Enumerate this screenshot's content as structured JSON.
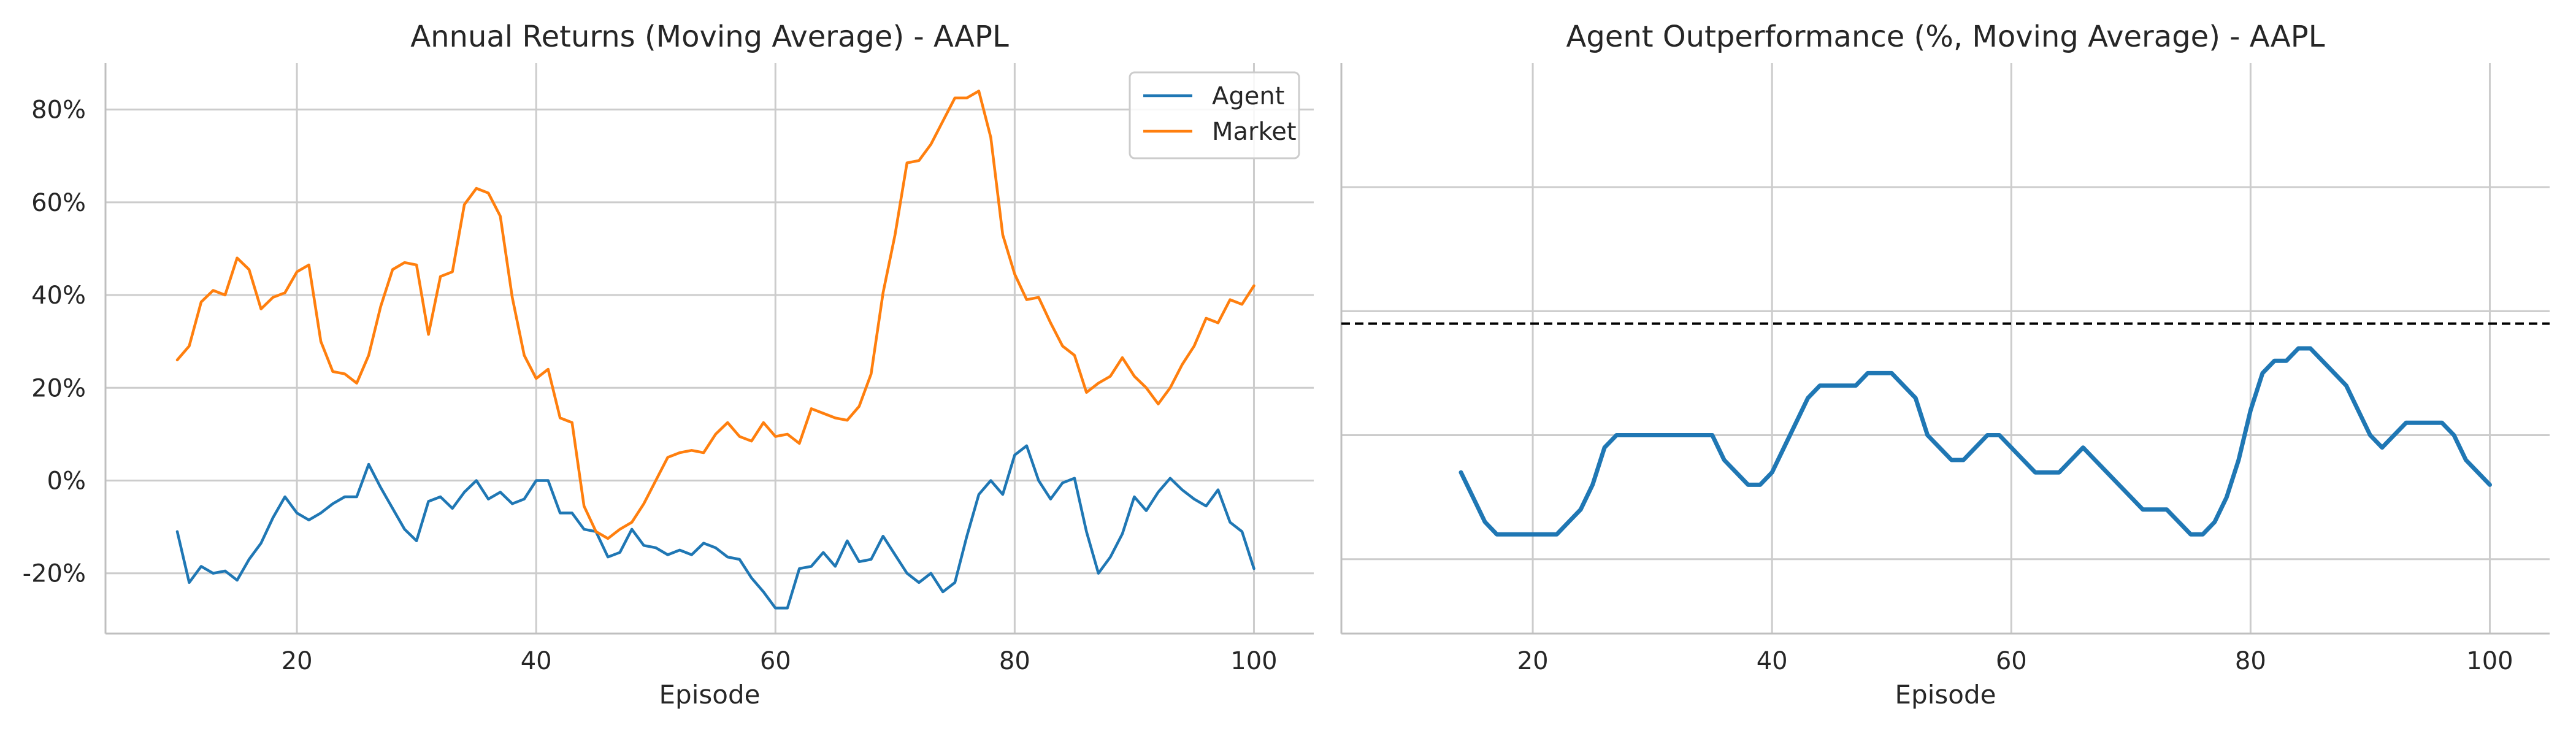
{
  "chart_data": [
    {
      "type": "line",
      "title": "Annual Returns (Moving Average) - AAPL",
      "xlabel": "Episode",
      "ylabel": "",
      "xlim": [
        4,
        105
      ],
      "ylim": [
        -33,
        90
      ],
      "x_ticks": [
        20,
        40,
        60,
        80,
        100
      ],
      "y_ticks": [
        -20,
        0,
        20,
        40,
        60,
        80
      ],
      "y_tick_labels": [
        "-20%",
        "0%",
        "20%",
        "40%",
        "60%",
        "80%"
      ],
      "grid": true,
      "legend": "top-right",
      "series": [
        {
          "name": "Agent",
          "color": "#1f77b4",
          "x": [
            10,
            11,
            12,
            13,
            14,
            15,
            16,
            17,
            18,
            19,
            20,
            21,
            22,
            23,
            24,
            25,
            26,
            27,
            28,
            29,
            30,
            31,
            32,
            33,
            34,
            35,
            36,
            37,
            38,
            39,
            40,
            41,
            42,
            43,
            44,
            45,
            46,
            47,
            48,
            49,
            50,
            51,
            52,
            53,
            54,
            55,
            56,
            57,
            58,
            59,
            60,
            61,
            62,
            63,
            64,
            65,
            66,
            67,
            68,
            69,
            70,
            71,
            72,
            73,
            74,
            75,
            76,
            77,
            78,
            79,
            80,
            81,
            82,
            83,
            84,
            85,
            86,
            87,
            88,
            89,
            90,
            91,
            92,
            93,
            94,
            95,
            96,
            97,
            98,
            99,
            100
          ],
          "y": [
            -11,
            -22,
            -18.5,
            -20,
            -19.5,
            -21.5,
            -17,
            -13.5,
            -8,
            -3.5,
            -7,
            -8.5,
            -7,
            -5,
            -3.5,
            -3.5,
            3.5,
            -1.5,
            -6,
            -10.5,
            -13,
            -4.5,
            -3.5,
            -6,
            -2.5,
            0,
            -4,
            -2.5,
            -5,
            -4,
            0,
            0,
            -7,
            -7,
            -10.5,
            -11,
            -16.5,
            -15.5,
            -10.5,
            -14,
            -14.5,
            -16,
            -15,
            -16,
            -13.5,
            -14.5,
            -16.5,
            -17,
            -21,
            -24,
            -27.5,
            -27.5,
            -19,
            -18.5,
            -15.5,
            -18.5,
            -13,
            -17.5,
            -17,
            -12,
            -16,
            -20,
            -22,
            -20,
            -24,
            -22,
            -12,
            -3,
            0,
            -3,
            5.5,
            7.5,
            0,
            -4,
            -0.5,
            0.5,
            -11,
            -20,
            -16.5,
            -11.5,
            -3.5,
            -6.5,
            -2.5,
            0.5,
            -2,
            -4,
            -5.5,
            -2,
            -9,
            -11,
            -19
          ]
        },
        {
          "name": "Market",
          "color": "#ff7f0e",
          "x": [
            10,
            11,
            12,
            13,
            14,
            15,
            16,
            17,
            18,
            19,
            20,
            21,
            22,
            23,
            24,
            25,
            26,
            27,
            28,
            29,
            30,
            31,
            32,
            33,
            34,
            35,
            36,
            37,
            38,
            39,
            40,
            41,
            42,
            43,
            44,
            45,
            46,
            47,
            48,
            49,
            50,
            51,
            52,
            53,
            54,
            55,
            56,
            57,
            58,
            59,
            60,
            61,
            62,
            63,
            64,
            65,
            66,
            67,
            68,
            69,
            70,
            71,
            72,
            73,
            74,
            75,
            76,
            77,
            78,
            79,
            80,
            81,
            82,
            83,
            84,
            85,
            86,
            87,
            88,
            89,
            90,
            91,
            92,
            93,
            94,
            95,
            96,
            97,
            98,
            99,
            100
          ],
          "y": [
            26,
            29,
            38.5,
            41,
            40,
            48,
            45.5,
            37,
            39.5,
            40.5,
            45,
            46.5,
            30,
            23.5,
            23,
            21,
            27,
            37.5,
            45.5,
            47,
            46.5,
            31.5,
            44,
            45,
            59.5,
            63,
            62,
            57,
            39.5,
            27,
            22,
            24,
            13.5,
            12.5,
            -5.5,
            -11,
            -12.5,
            -10.5,
            -9,
            -5,
            0,
            5,
            6,
            6.5,
            6,
            10,
            12.5,
            9.5,
            8.5,
            12.5,
            9.5,
            10,
            8,
            15.5,
            14.5,
            13.5,
            13,
            16,
            23,
            40.5,
            53,
            68.5,
            69,
            72.5,
            77.5,
            82.5,
            82.5,
            84,
            74,
            53,
            44.5,
            39,
            39.5,
            34,
            29,
            27,
            19,
            21,
            22.5,
            26.5,
            22.5,
            20,
            16.5,
            20,
            25,
            29,
            35,
            34,
            39,
            38,
            42
          ]
        }
      ]
    },
    {
      "type": "line",
      "title": "Agent Outperformance (%, Moving Average) - AAPL",
      "xlabel": "Episode",
      "ylabel": "",
      "xlim": [
        4,
        105
      ],
      "ylim": [
        0,
        0.92
      ],
      "x_ticks": [
        20,
        40,
        60,
        80,
        100
      ],
      "y_ticks": [
        0.12,
        0.32,
        0.52,
        0.72
      ],
      "y_tick_labels": [],
      "grid": true,
      "legend": "none",
      "reference_line": {
        "y": 0.5,
        "style": "dashed",
        "color": "#000000"
      },
      "series": [
        {
          "color": "#1f77b4",
          "x": [
            14,
            15,
            16,
            17,
            18,
            19,
            20,
            21,
            22,
            23,
            24,
            25,
            26,
            27,
            28,
            29,
            30,
            31,
            32,
            33,
            34,
            35,
            36,
            37,
            38,
            39,
            40,
            41,
            42,
            43,
            44,
            45,
            46,
            47,
            48,
            49,
            50,
            51,
            52,
            53,
            54,
            55,
            56,
            57,
            58,
            59,
            60,
            61,
            62,
            63,
            64,
            65,
            66,
            67,
            68,
            69,
            70,
            71,
            72,
            73,
            74,
            75,
            76,
            77,
            78,
            79,
            80,
            81,
            82,
            83,
            84,
            85,
            86,
            87,
            88,
            89,
            90,
            91,
            92,
            93,
            94,
            95,
            96,
            97,
            98,
            99,
            100
          ],
          "y": [
            0.26,
            0.22,
            0.18,
            0.16,
            0.16,
            0.16,
            0.16,
            0.16,
            0.16,
            0.18,
            0.2,
            0.24,
            0.3,
            0.32,
            0.32,
            0.32,
            0.32,
            0.32,
            0.32,
            0.32,
            0.32,
            0.32,
            0.28,
            0.26,
            0.24,
            0.24,
            0.26,
            0.3,
            0.34,
            0.38,
            0.4,
            0.4,
            0.4,
            0.4,
            0.42,
            0.42,
            0.42,
            0.4,
            0.38,
            0.32,
            0.3,
            0.28,
            0.28,
            0.3,
            0.32,
            0.32,
            0.3,
            0.28,
            0.26,
            0.26,
            0.26,
            0.28,
            0.3,
            0.28,
            0.26,
            0.24,
            0.22,
            0.2,
            0.2,
            0.2,
            0.18,
            0.16,
            0.16,
            0.18,
            0.22,
            0.28,
            0.36,
            0.42,
            0.44,
            0.44,
            0.46,
            0.46,
            0.44,
            0.42,
            0.4,
            0.36,
            0.32,
            0.3,
            0.32,
            0.34,
            0.34,
            0.34,
            0.34,
            0.32,
            0.28,
            0.26,
            0.24
          ]
        }
      ]
    }
  ]
}
